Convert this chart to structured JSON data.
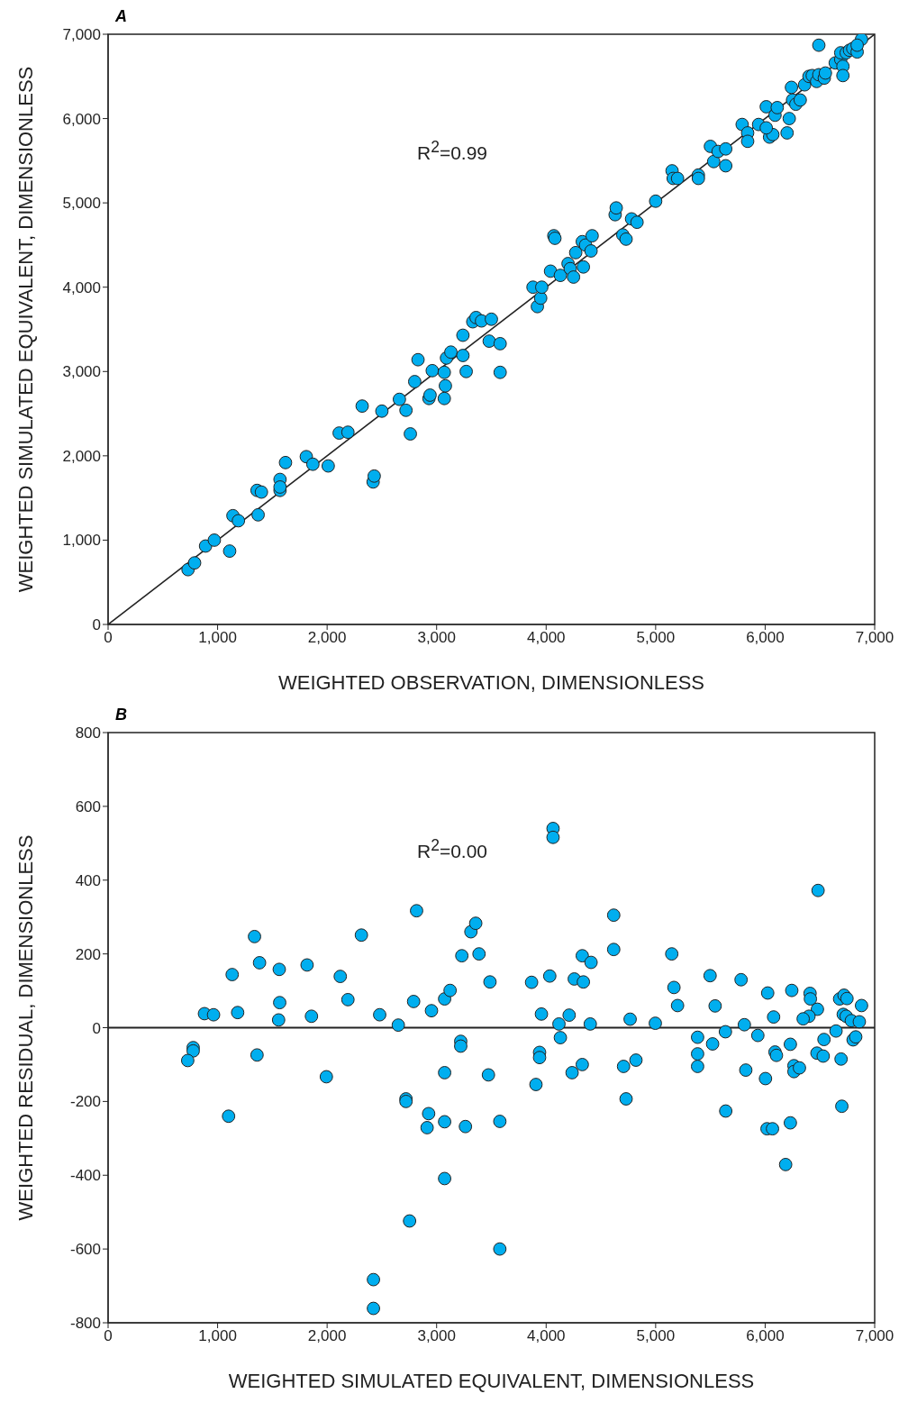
{
  "chart_data": [
    {
      "type": "scatter",
      "title": "A",
      "xlabel": "WEIGHTED OBSERVATION, DIMENSIONLESS",
      "ylabel": "WEIGHTED SIMULATED EQUIVALENT, DIMENSIONLESS",
      "annotations": [
        "R$^{2}$=0.99"
      ],
      "grid": false,
      "legend": false,
      "xlim": [
        0,
        7000
      ],
      "ylim": [
        0,
        7000
      ],
      "xticks": [
        0,
        {
          "value": 1000,
          "label": "1,000"
        },
        {
          "value": 2000,
          "label": "2,000"
        },
        {
          "value": 3000,
          "label": "3,000"
        },
        {
          "value": 4000,
          "label": "4,000"
        },
        {
          "value": 5000,
          "label": "5,000"
        },
        {
          "value": 6000,
          "label": "6,000"
        },
        {
          "value": 7000,
          "label": "7,000"
        }
      ],
      "yticks": [
        0,
        {
          "value": 1000,
          "label": "1,000"
        },
        {
          "value": 2000,
          "label": "2,000"
        },
        {
          "value": 3000,
          "label": "3,000"
        },
        {
          "value": 4000,
          "label": "4,000"
        },
        {
          "value": 5000,
          "label": "5,000"
        },
        {
          "value": 6000,
          "label": "6,000"
        },
        {
          "value": 7000,
          "label": "7,000"
        }
      ],
      "series": [
        {
          "marker": "circle",
          "color": "#00aeef",
          "x": [
            730,
            790,
            890,
            970,
            1110,
            1140,
            1190,
            1360,
            1370,
            1400,
            1570,
            1570,
            1570,
            1620,
            1810,
            1870,
            2010,
            2110,
            2190,
            2320,
            2420,
            2430,
            2500,
            2660,
            2720,
            2760,
            2800,
            2830,
            2930,
            2940,
            2960,
            3070,
            3080,
            3070,
            3090,
            3130,
            3240,
            3240,
            3270,
            3330,
            3360,
            3410,
            3480,
            3500,
            3580,
            3580,
            3880,
            3920,
            3950,
            3960,
            4040,
            4070,
            4080,
            4130,
            4200,
            4220,
            4250,
            4270,
            4330,
            4340,
            4360,
            4410,
            4420,
            4630,
            4640,
            4700,
            4730,
            4780,
            4830,
            5000,
            5150,
            5160,
            5200,
            5390,
            5390,
            5500,
            5530,
            5570,
            5640,
            5640,
            5790,
            5840,
            5840,
            5940,
            6010,
            6040,
            6070,
            6010,
            6090,
            6110,
            6200,
            6220,
            6240,
            6250,
            6280,
            6320,
            6360,
            6400,
            6430,
            6470,
            6490,
            6490,
            6540,
            6550,
            6640,
            6690,
            6690,
            6710,
            6710,
            6740,
            6770,
            6800,
            6840,
            6880,
            6840
          ],
          "values": [
            650,
            730,
            930,
            1000,
            870,
            1290,
            1230,
            1590,
            1300,
            1570,
            1590,
            1720,
            1630,
            1920,
            1990,
            1900,
            1880,
            2270,
            2280,
            2590,
            1690,
            1760,
            2530,
            2670,
            2540,
            2260,
            2880,
            3140,
            2680,
            2720,
            3010,
            2680,
            2830,
            2990,
            3160,
            3230,
            3190,
            3430,
            3000,
            3590,
            3640,
            3600,
            3360,
            3620,
            3330,
            2990,
            4000,
            3770,
            3870,
            4000,
            4190,
            4610,
            4580,
            4140,
            4280,
            4220,
            4120,
            4410,
            4540,
            4240,
            4500,
            4430,
            4610,
            4860,
            4940,
            4620,
            4570,
            4810,
            4770,
            5020,
            5380,
            5290,
            5290,
            5330,
            5290,
            5670,
            5490,
            5610,
            5440,
            5640,
            5930,
            5830,
            5730,
            5930,
            6140,
            5780,
            5810,
            5890,
            6040,
            6130,
            5830,
            6000,
            6370,
            6220,
            6170,
            6220,
            6400,
            6500,
            6510,
            6440,
            6870,
            6520,
            6480,
            6540,
            6660,
            6700,
            6780,
            6620,
            6510,
            6780,
            6810,
            6830,
            6790,
            6940,
            6870
          ]
        },
        {
          "type": "line",
          "color": "#222222",
          "x": [
            0,
            7000
          ],
          "values": [
            0,
            7000
          ]
        }
      ]
    },
    {
      "type": "scatter",
      "title": "B",
      "xlabel": "WEIGHTED SIMULATED EQUIVALENT, DIMENSIONLESS",
      "ylabel": "WEIGHTED RESIDUAL, DIMENSIONLESS",
      "annotations": [
        "R$^{2}$=0.00"
      ],
      "grid": false,
      "legend": false,
      "xlim": [
        0,
        7000
      ],
      "ylim": [
        -800,
        800
      ],
      "xticks": [
        0,
        {
          "value": 1000,
          "label": "1,000"
        },
        {
          "value": 2000,
          "label": "2,000"
        },
        {
          "value": 3000,
          "label": "3,000"
        },
        {
          "value": 4000,
          "label": "4,000"
        },
        {
          "value": 5000,
          "label": "5,000"
        },
        {
          "value": 6000,
          "label": "6,000"
        },
        {
          "value": 7000,
          "label": "7,000"
        }
      ],
      "yticks": [
        -800,
        -600,
        -400,
        -200,
        0,
        200,
        400,
        600,
        800
      ],
      "ref_lines": [
        {
          "axis": "y",
          "value": 0,
          "color": "#222222"
        }
      ],
      "series": [
        {
          "marker": "circle",
          "color": "#00aeef",
          "x": [
            880,
            963,
            1133,
            1183,
            1337,
            1383,
            1563,
            1567,
            1557,
            1817,
            1857,
            2120,
            2190,
            2313,
            777,
            777,
            727,
            1360,
            1100,
            1993,
            2817,
            2480,
            2650,
            2790,
            2953,
            3073,
            3123,
            3230,
            3313,
            3357,
            3387,
            3487,
            3867,
            4033,
            4063,
            4063,
            3957,
            4117,
            4210,
            4257,
            4330,
            4340,
            4410,
            4403,
            4617,
            4617,
            3220,
            3220,
            3073,
            3473,
            3940,
            3940,
            3907,
            4130,
            4237,
            4330,
            2720,
            2720,
            2927,
            2913,
            3073,
            3263,
            3577,
            3073,
            2753,
            3577,
            2423,
            2423,
            4767,
            4997,
            5147,
            5167,
            5200,
            5497,
            5543,
            5780,
            5810,
            6023,
            6077,
            6243,
            6410,
            6413,
            6477,
            6400,
            6347,
            6483,
            6680,
            6720,
            6747,
            6713,
            6740,
            6787,
            6860,
            6880,
            6647,
            6537,
            6803,
            6827,
            6693,
            6700,
            4707,
            4820,
            4730,
            5383,
            5383,
            5383,
            5520,
            5637,
            5640,
            5823,
            5933,
            6003,
            6090,
            6103,
            6230,
            6263,
            6263,
            6313,
            6473,
            6530,
            6017,
            6067,
            6230,
            6187
          ],
          "values": [
            38,
            35,
            144,
            41,
            247,
            176,
            158,
            68,
            21,
            170,
            31,
            139,
            76,
            251,
            -54,
            -63,
            -89,
            -74,
            -240,
            -133,
            317,
            35,
            7,
            71,
            46,
            78,
            101,
            195,
            260,
            283,
            200,
            124,
            123,
            140,
            540,
            516,
            37,
            10,
            34,
            132,
            195,
            124,
            177,
            10,
            305,
            212,
            -37,
            -50,
            -122,
            -128,
            -67,
            -81,
            -154,
            -27,
            -122,
            -100,
            -193,
            -200,
            -233,
            -271,
            -255,
            -268,
            -254,
            -409,
            -524,
            -600,
            -683,
            -761,
            23,
            12,
            200,
            109,
            60,
            141,
            59,
            130,
            8,
            94,
            29,
            101,
            93,
            78,
            50,
            31,
            24,
            372,
            78,
            88,
            79,
            36,
            31,
            19,
            16,
            60,
            -9,
            -32,
            -33,
            -25,
            -85,
            -213,
            -105,
            -88,
            -193,
            -26,
            -71,
            -105,
            -44,
            -11,
            -226,
            -115,
            -21,
            -138,
            -66,
            -75,
            -45,
            -103,
            -119,
            -109,
            -69,
            -77,
            -274,
            -274,
            -258,
            -371
          ]
        }
      ]
    }
  ]
}
